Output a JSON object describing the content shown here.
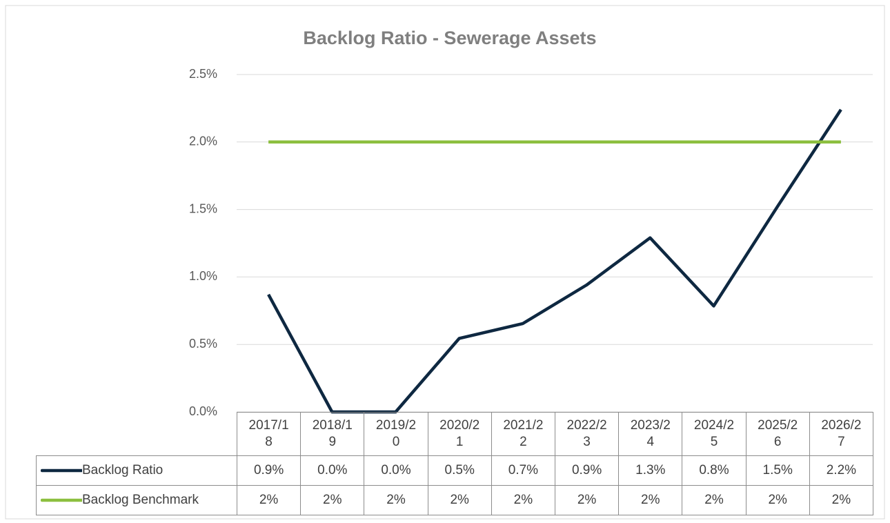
{
  "chart_data": {
    "type": "line",
    "title": "Backlog Ratio - Sewerage Assets",
    "categories": [
      "2017/18",
      "2018/19",
      "2019/20",
      "2020/21",
      "2021/22",
      "2022/23",
      "2023/24",
      "2024/25",
      "2025/26",
      "2026/27"
    ],
    "ylim": [
      0,
      2.5
    ],
    "yticks": [
      {
        "value": 0,
        "label": "0.0%"
      },
      {
        "value": 0.5,
        "label": "0.5%"
      },
      {
        "value": 1,
        "label": "1.0%"
      },
      {
        "value": 1.5,
        "label": "1.5%"
      },
      {
        "value": 2,
        "label": "2.0%"
      },
      {
        "value": 2.5,
        "label": "2.5%"
      }
    ],
    "grid": true,
    "data_table": true,
    "series": [
      {
        "name": "Backlog Ratio",
        "color": "#0e2841",
        "values": [
          0.87,
          0.0,
          0.0,
          0.545,
          0.655,
          0.94,
          1.29,
          0.785,
          1.52,
          2.24
        ],
        "value_labels": [
          "0.9%",
          "0.0%",
          "0.0%",
          "0.5%",
          "0.7%",
          "0.9%",
          "1.3%",
          "0.8%",
          "1.5%",
          "2.2%"
        ]
      },
      {
        "name": "Backlog Benchmark",
        "color": "#8cbf3f",
        "values": [
          2,
          2,
          2,
          2,
          2,
          2,
          2,
          2,
          2,
          2
        ],
        "value_labels": [
          "2%",
          "2%",
          "2%",
          "2%",
          "2%",
          "2%",
          "2%",
          "2%",
          "2%",
          "2%"
        ]
      }
    ]
  }
}
